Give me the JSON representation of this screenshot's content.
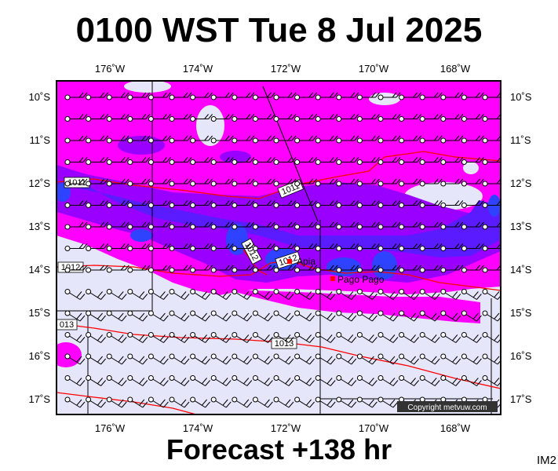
{
  "title": "0100 WST Tue 8 Jul 2025",
  "subtitle": "Forecast +138 hr",
  "corner_label": "IM2",
  "copyright": "Copyright metvuw.com",
  "lon_labels": [
    "176˚W",
    "174˚W",
    "172˚W",
    "170˚W",
    "168˚W"
  ],
  "lat_labels": [
    "10˚S",
    "11˚S",
    "12˚S",
    "13˚S",
    "14˚S",
    "15˚S",
    "16˚S",
    "17˚S"
  ],
  "isobars": [
    "1011",
    "1011",
    "1012",
    "1012",
    "1012",
    "013",
    "1013"
  ],
  "cities": [
    "Apia",
    "Pago Pago"
  ],
  "colors": {
    "precip_heavy": "#ff00ff",
    "precip_medium": "#9900ff",
    "precip_strong": "#5a1cff",
    "precip_core": "#2f43ff",
    "precip_light": "#e6e6fa",
    "isobar": "#ff0000"
  }
}
